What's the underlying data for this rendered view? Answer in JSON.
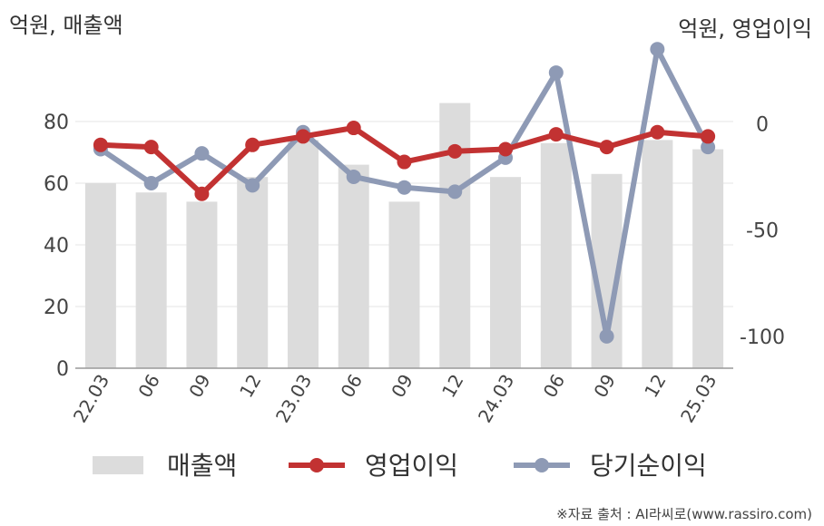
{
  "chart_data": {
    "type": "bar",
    "left_unit_label": "억원, 매출액",
    "right_unit_label": "억원, 영업이익",
    "categories": [
      "22.03",
      "06",
      "09",
      "12",
      "23.03",
      "06",
      "09",
      "12",
      "24.03",
      "06",
      "09",
      "12",
      "25.03"
    ],
    "left_axis": {
      "ticks": [
        0,
        20,
        40,
        60,
        80
      ],
      "ylim": [
        0,
        100
      ]
    },
    "right_axis": {
      "ticks": [
        0,
        -50,
        -100
      ],
      "ylim": [
        -115,
        30
      ]
    },
    "series": [
      {
        "name": "매출액",
        "kind": "bar",
        "axis": "left",
        "color": "#dcdcdc",
        "values": [
          60,
          57,
          54,
          62,
          74,
          66,
          54,
          86,
          62,
          73,
          63,
          74,
          71
        ]
      },
      {
        "name": "영업이익",
        "kind": "line",
        "axis": "right",
        "color": "#c23232",
        "values": [
          -10,
          -11,
          -33,
          -10,
          -6,
          -2,
          -18,
          -13,
          -12,
          -5,
          -11,
          -4,
          -6
        ]
      },
      {
        "name": "당기순이익",
        "kind": "line",
        "axis": "right",
        "color": "#8e9ab5",
        "values": [
          -12,
          -28,
          -14,
          -29,
          -4,
          -25,
          -30,
          -32,
          -16,
          24,
          -100,
          35,
          -11
        ]
      }
    ],
    "grid": true,
    "legend_position": "bottom"
  },
  "source": "※자료 출처 : AI라씨로(www.rassiro.com)"
}
